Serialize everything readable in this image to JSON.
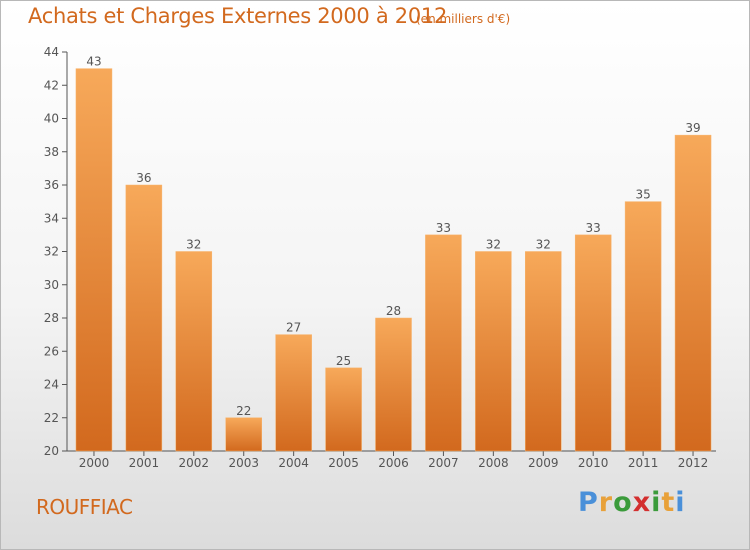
{
  "chart_data": {
    "type": "bar",
    "title": "Achats et Charges Externes 2000 à 2012",
    "subtitle": "(en milliers d'€)",
    "categories": [
      "2000",
      "2001",
      "2002",
      "2003",
      "2004",
      "2005",
      "2006",
      "2007",
      "2008",
      "2009",
      "2010",
      "2011",
      "2012"
    ],
    "values": [
      43,
      36,
      32,
      22,
      27,
      25,
      28,
      33,
      32,
      32,
      33,
      35,
      39
    ],
    "ylim": [
      20,
      44
    ],
    "yticks": [
      20,
      22,
      24,
      26,
      28,
      30,
      32,
      34,
      36,
      38,
      40,
      42,
      44
    ],
    "grid": false,
    "bar_color_top": "#f7a95a",
    "bar_color_bottom": "#d2691e"
  },
  "location_label": "ROUFFIAC",
  "logo": {
    "text": "Proxiti",
    "letter_colors": [
      "#4a90d9",
      "#e8a13a",
      "#3b9b3b",
      "#d32f2f",
      "#3b9b3b",
      "#e8a13a",
      "#4a90d9"
    ]
  },
  "colors": {
    "accent": "#d2691e",
    "axis": "#555555"
  }
}
